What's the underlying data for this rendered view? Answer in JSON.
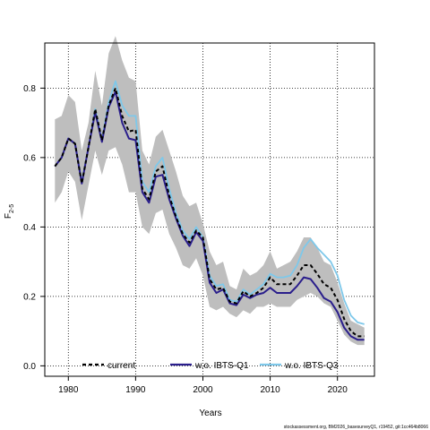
{
  "chart_data": {
    "type": "line",
    "xlabel": "Years",
    "ylabel_main": "F",
    "ylabel_sub": "2-5",
    "xlim": [
      1976.5,
      2025.5
    ],
    "ylim": [
      -0.03,
      0.93
    ],
    "x_ticks": [
      1980,
      1990,
      2000,
      2010,
      2020
    ],
    "y_ticks": [
      0.0,
      0.2,
      0.4,
      0.6,
      0.8
    ],
    "x_tick_labels": [
      "1980",
      "1990",
      "2000",
      "2010",
      "2020"
    ],
    "y_tick_labels": [
      "0.0",
      "0.2",
      "0.4",
      "0.6",
      "0.8"
    ],
    "grid": true,
    "legend_placement": "bottom",
    "x": [
      1978,
      1979,
      1980,
      1981,
      1982,
      1983,
      1984,
      1985,
      1986,
      1987,
      1988,
      1989,
      1990,
      1991,
      1992,
      1993,
      1994,
      1995,
      1996,
      1997,
      1998,
      1999,
      2000,
      2001,
      2002,
      2003,
      2004,
      2005,
      2006,
      2007,
      2008,
      2009,
      2010,
      2011,
      2012,
      2013,
      2014,
      2015,
      2016,
      2017,
      2018,
      2019,
      2020,
      2021,
      2022,
      2023,
      2024
    ],
    "band": {
      "color": "#bebebe",
      "lower": [
        0.47,
        0.5,
        0.56,
        0.53,
        0.42,
        0.52,
        0.62,
        0.55,
        0.62,
        0.63,
        0.58,
        0.5,
        0.5,
        0.4,
        0.38,
        0.44,
        0.45,
        0.38,
        0.34,
        0.29,
        0.28,
        0.31,
        0.26,
        0.17,
        0.16,
        0.17,
        0.15,
        0.14,
        0.16,
        0.15,
        0.17,
        0.17,
        0.18,
        0.17,
        0.17,
        0.17,
        0.19,
        0.2,
        0.21,
        0.2,
        0.18,
        0.17,
        0.13,
        0.09,
        0.07,
        0.06,
        0.06
      ],
      "upper": [
        0.71,
        0.72,
        0.78,
        0.76,
        0.62,
        0.7,
        0.85,
        0.75,
        0.9,
        0.95,
        0.88,
        0.83,
        0.82,
        0.62,
        0.58,
        0.66,
        0.68,
        0.62,
        0.56,
        0.49,
        0.46,
        0.47,
        0.41,
        0.33,
        0.29,
        0.3,
        0.23,
        0.22,
        0.28,
        0.26,
        0.27,
        0.29,
        0.33,
        0.28,
        0.29,
        0.3,
        0.33,
        0.37,
        0.37,
        0.34,
        0.3,
        0.29,
        0.24,
        0.18,
        0.13,
        0.12,
        0.11
      ]
    },
    "series": [
      {
        "name": "current",
        "color": "#000000",
        "dash": "4,3",
        "values": [
          0.575,
          0.6,
          0.655,
          0.64,
          0.525,
          0.63,
          0.74,
          0.65,
          0.75,
          0.8,
          0.72,
          0.675,
          0.68,
          0.51,
          0.48,
          0.56,
          0.575,
          0.49,
          0.43,
          0.38,
          0.355,
          0.39,
          0.37,
          0.25,
          0.22,
          0.225,
          0.185,
          0.18,
          0.215,
          0.2,
          0.21,
          0.225,
          0.255,
          0.235,
          0.235,
          0.235,
          0.26,
          0.29,
          0.29,
          0.265,
          0.235,
          0.225,
          0.19,
          0.135,
          0.1,
          0.085,
          0.085
        ]
      },
      {
        "name": "w.o. IBTS-Q1",
        "color": "#2a1e8c",
        "dash": "",
        "values": [
          0.575,
          0.6,
          0.655,
          0.64,
          0.525,
          0.63,
          0.73,
          0.645,
          0.745,
          0.79,
          0.7,
          0.655,
          0.65,
          0.5,
          0.47,
          0.545,
          0.55,
          0.48,
          0.425,
          0.375,
          0.345,
          0.385,
          0.36,
          0.24,
          0.21,
          0.22,
          0.18,
          0.175,
          0.205,
          0.195,
          0.205,
          0.21,
          0.225,
          0.21,
          0.21,
          0.21,
          0.23,
          0.255,
          0.25,
          0.225,
          0.195,
          0.185,
          0.155,
          0.11,
          0.085,
          0.075,
          0.075
        ]
      },
      {
        "name": "w.o. IBTS-Q3",
        "color": "#7ec8ea",
        "dash": "",
        "values": [
          0.575,
          0.6,
          0.655,
          0.64,
          0.53,
          0.63,
          0.74,
          0.65,
          0.76,
          0.82,
          0.75,
          0.72,
          0.72,
          0.53,
          0.5,
          0.575,
          0.6,
          0.51,
          0.44,
          0.39,
          0.365,
          0.4,
          0.37,
          0.26,
          0.23,
          0.235,
          0.19,
          0.185,
          0.22,
          0.205,
          0.22,
          0.235,
          0.265,
          0.255,
          0.255,
          0.26,
          0.29,
          0.34,
          0.365,
          0.34,
          0.32,
          0.3,
          0.26,
          0.19,
          0.145,
          0.125,
          0.12
        ]
      }
    ]
  },
  "footer": {
    "source_text": "stockassessment.org, BM2026_basesurveyQ1, r19452, git:1cc464b8066"
  }
}
